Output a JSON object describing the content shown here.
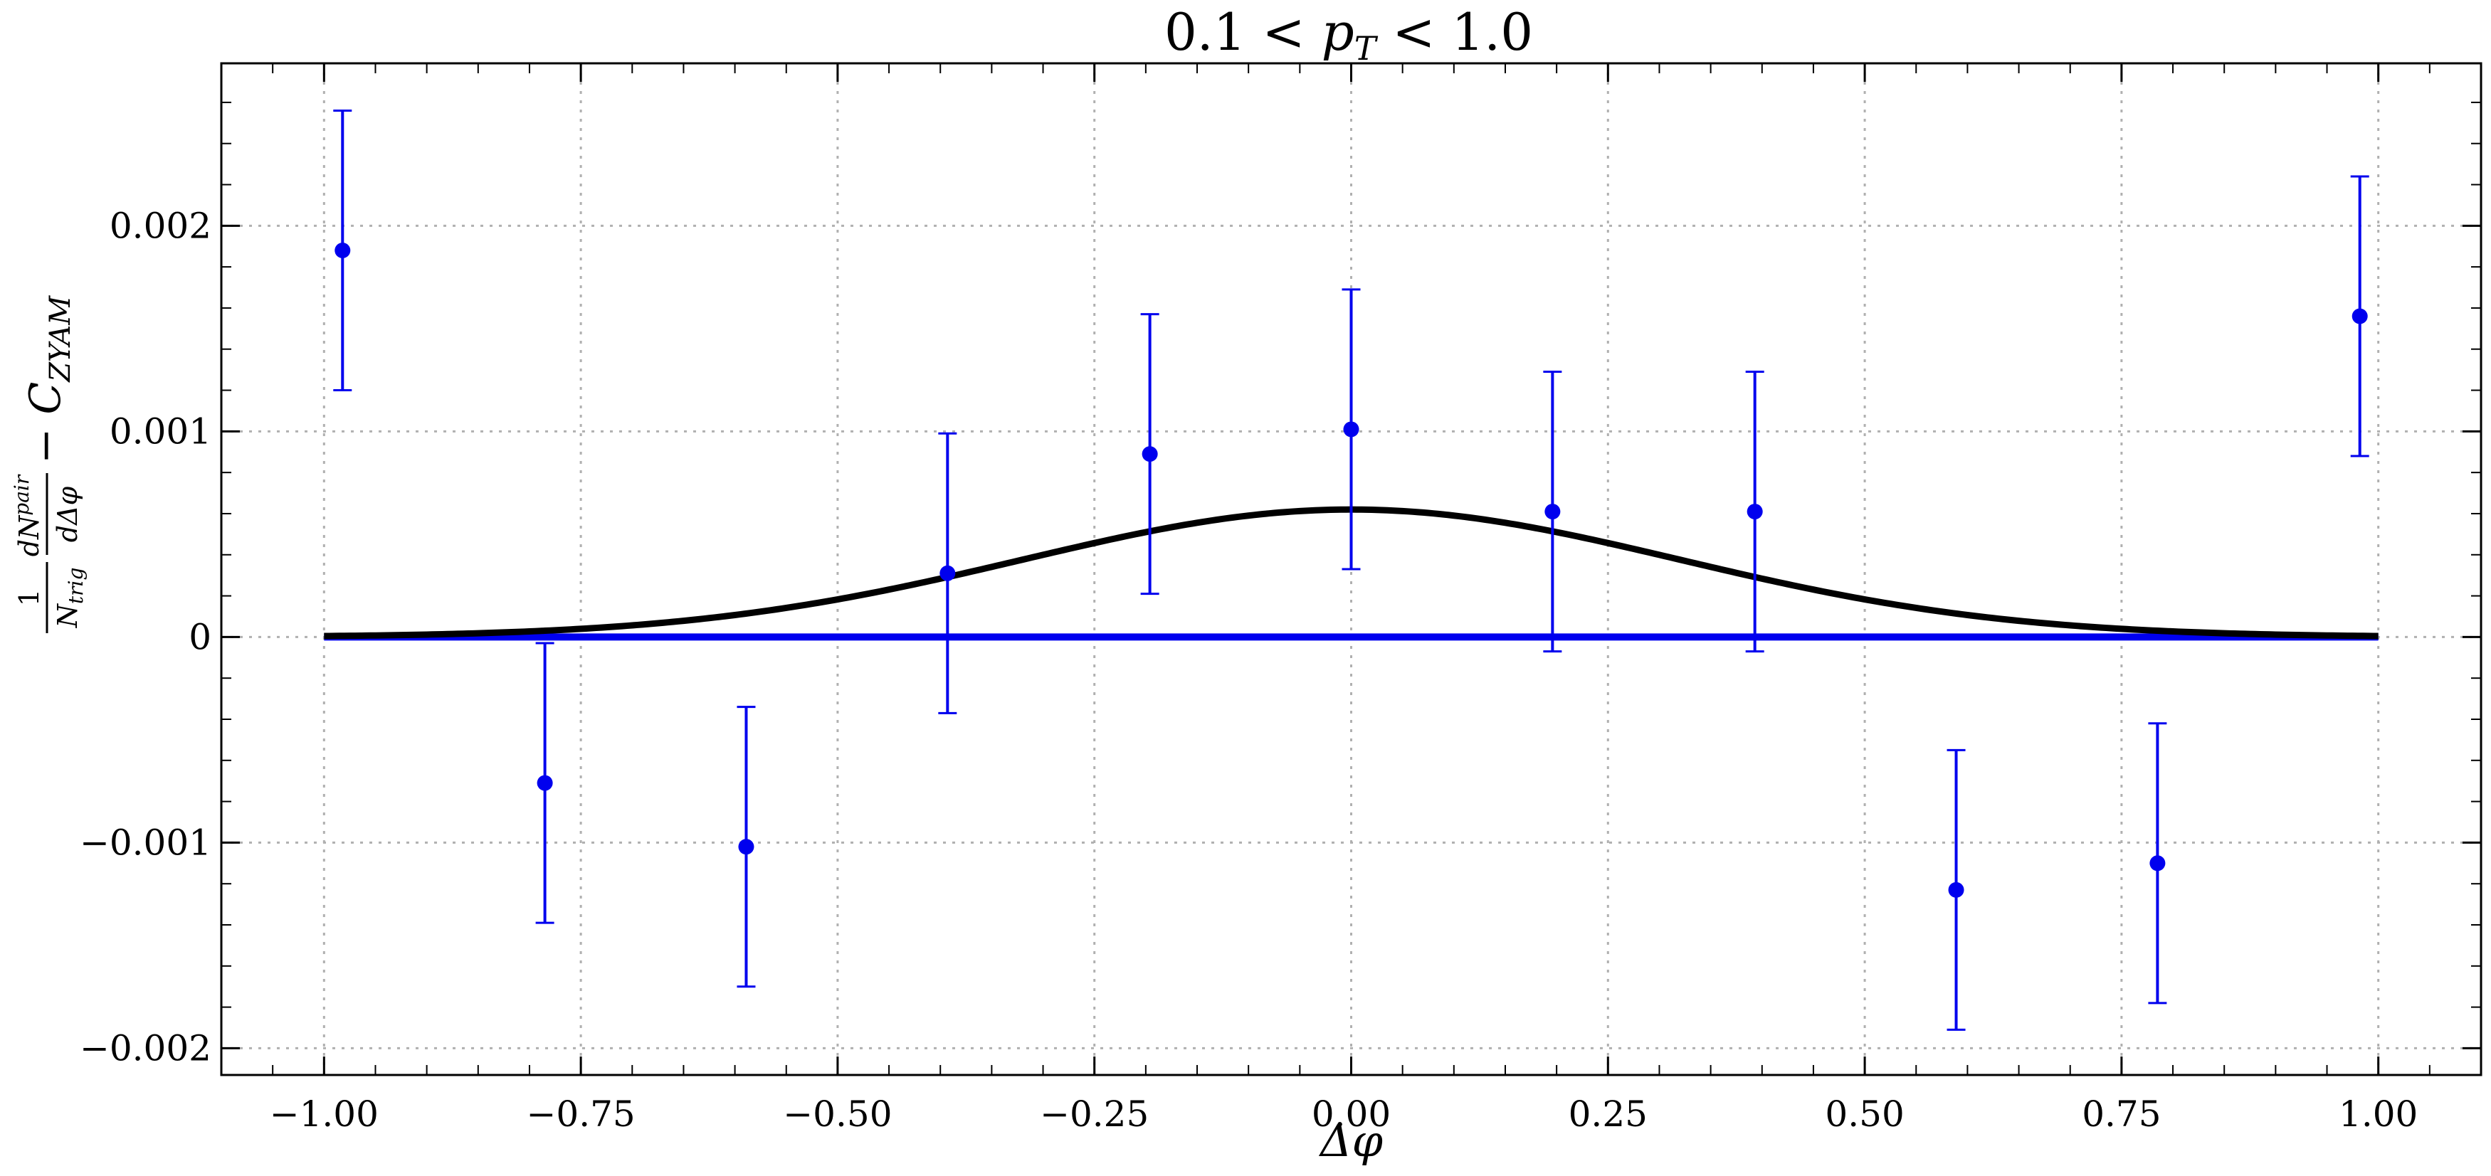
{
  "chart_data": {
    "type": "scatter",
    "title_parts": {
      "left": "0.1 < ",
      "var": "p",
      "sub": "T",
      "right": " < 1.0"
    },
    "xlabel": "Δφ",
    "ylabel_parts": {
      "num1": "1",
      "den1": "N",
      "den1_sub": "trig",
      "num2": "dN",
      "num2_sup": "pair",
      "den2": "dΔφ",
      "tail": " − C",
      "tail_sub": "ZYAM"
    },
    "xlim": [
      -1.1,
      1.1
    ],
    "ylim": [
      -0.00213,
      0.00279
    ],
    "xticks": [
      -1.0,
      -0.75,
      -0.5,
      -0.25,
      0.0,
      0.25,
      0.5,
      0.75,
      1.0
    ],
    "xtick_labels": [
      "−1.00",
      "−0.75",
      "−0.50",
      "−0.25",
      "0.00",
      "0.25",
      "0.50",
      "0.75",
      "1.00"
    ],
    "yticks": [
      -0.002,
      -0.001,
      0,
      0.001,
      0.002
    ],
    "ytick_labels": [
      "−0.002",
      "−0.001",
      "0",
      "0.001",
      "0.002"
    ],
    "grid": true,
    "points": {
      "x": [
        -0.982,
        -0.785,
        -0.589,
        -0.393,
        -0.196,
        0.0,
        0.196,
        0.393,
        0.589,
        0.785,
        0.982
      ],
      "y": [
        0.00188,
        -0.00071,
        -0.00102,
        0.00031,
        0.00089,
        0.00101,
        0.00061,
        0.00061,
        -0.00123,
        -0.0011,
        0.00156
      ],
      "yerr": [
        0.00068,
        0.00068,
        0.00068,
        0.00068,
        0.00068,
        0.00068,
        0.00068,
        0.00068,
        0.00068,
        0.00068,
        0.00068
      ]
    },
    "gaussian_fit": {
      "amplitude": 0.00062,
      "mean": 0.0,
      "sigma": 0.32,
      "x_range": [
        -1.0,
        1.0
      ]
    },
    "baseline": {
      "y": 0,
      "x_range": [
        -1.0,
        1.0
      ]
    },
    "colors": {
      "points": "#0000ee",
      "fit": "#000000",
      "baseline": "#0000ee",
      "grid": "#b0b0b0"
    }
  }
}
